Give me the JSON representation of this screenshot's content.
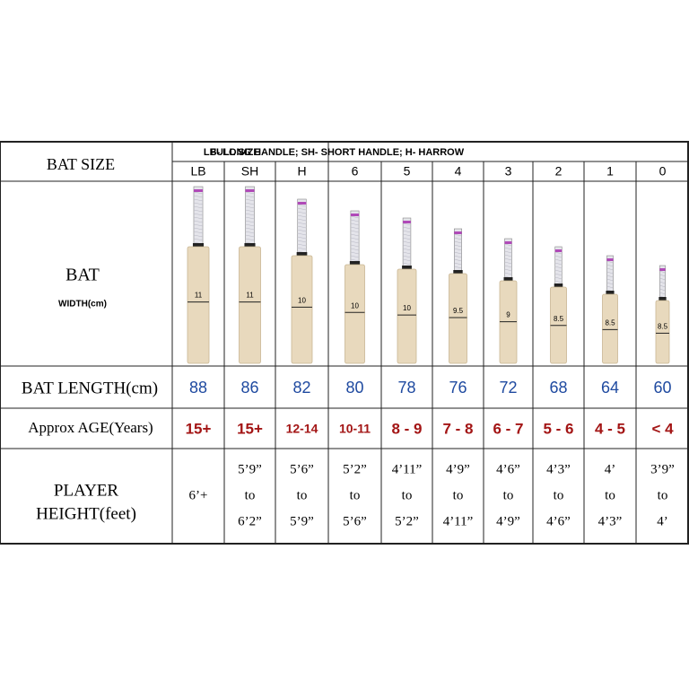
{
  "header": {
    "row_label": "BAT SIZE",
    "full_size": "FULL SIZE",
    "legend": "LB- LONG HANDLE; SH- SHORT HANDLE; H- HARROW"
  },
  "rows": {
    "bat_title": "BAT",
    "bat_subtitle": "WIDTH(cm)",
    "length": "BAT LENGTH(cm)",
    "age": "Approx AGE(Years)",
    "height": [
      "PLAYER",
      "HEIGHT(feet)"
    ]
  },
  "sizes": [
    {
      "size": "LB",
      "width": "11",
      "length": "88",
      "age": "15+",
      "height": [
        "6’+"
      ]
    },
    {
      "size": "SH",
      "width": "11",
      "length": "86",
      "age": "15+",
      "height": [
        "5’9”",
        "to",
        "6’2”"
      ]
    },
    {
      "size": "H",
      "width": "10",
      "length": "82",
      "age": "12-14",
      "height": [
        "5’6”",
        "to",
        "5’9”"
      ]
    },
    {
      "size": "6",
      "width": "10",
      "length": "80",
      "age": "10-11",
      "height": [
        "5’2”",
        "to",
        "5’6”"
      ]
    },
    {
      "size": "5",
      "width": "10",
      "length": "78",
      "age": "8 - 9",
      "height": [
        "4’11”",
        "to",
        "5’2”"
      ]
    },
    {
      "size": "4",
      "width": "9.5",
      "length": "76",
      "age": "7 - 8",
      "height": [
        "4’9”",
        "to",
        "4’11”"
      ]
    },
    {
      "size": "3",
      "width": "9",
      "length": "72",
      "age": "6 - 7",
      "height": [
        "4’6”",
        "to",
        "4’9”"
      ]
    },
    {
      "size": "2",
      "width": "8.5",
      "length": "68",
      "age": "5 - 6",
      "height": [
        "4’3”",
        "to",
        "4’6”"
      ]
    },
    {
      "size": "1",
      "width": "8.5",
      "length": "64",
      "age": "4 - 5",
      "height": [
        "4’",
        "to",
        "4’3”"
      ]
    },
    {
      "size": "0",
      "width": "8.5",
      "length": "60",
      "age": "< 4",
      "height": [
        "3’9”",
        "to",
        "4’"
      ]
    }
  ]
}
